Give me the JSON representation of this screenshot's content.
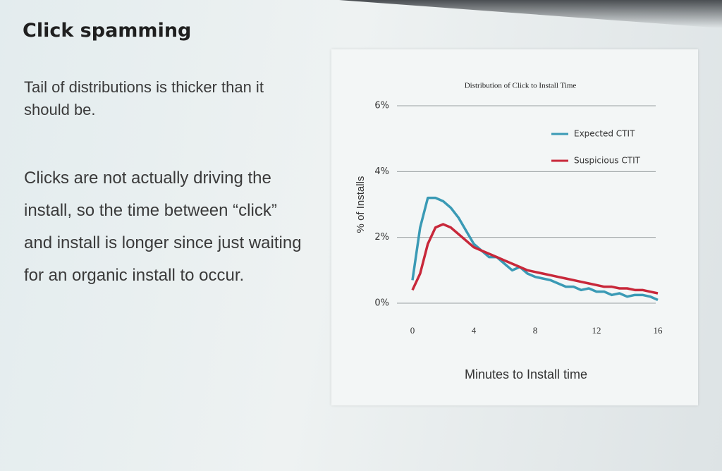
{
  "slide": {
    "title": "Click spamming",
    "paragraphs": [
      "Tail of distributions is thicker than it should be.",
      "Clicks are not actually driving the install, so the time between “click” and install is longer since just waiting for an organic install to occur."
    ]
  },
  "chart_data": {
    "type": "line",
    "title": "Distribution of Click to Install Time",
    "x_label": "Minutes to Install time",
    "y_label": "% of Installs",
    "x": [
      0,
      0.5,
      1,
      1.5,
      2,
      2.5,
      3,
      3.5,
      4,
      4.5,
      5,
      5.5,
      6,
      6.5,
      7,
      7.5,
      8,
      8.5,
      9,
      9.5,
      10,
      10.5,
      11,
      11.5,
      12,
      12.5,
      13,
      13.5,
      14,
      14.5,
      15,
      15.5,
      16
    ],
    "series": [
      {
        "name": "Expected CTIT",
        "color": "#3a9ab5",
        "values": [
          0.7,
          2.3,
          3.2,
          3.2,
          3.1,
          2.9,
          2.6,
          2.2,
          1.8,
          1.6,
          1.4,
          1.4,
          1.2,
          1.0,
          1.1,
          0.9,
          0.8,
          0.75,
          0.7,
          0.6,
          0.5,
          0.5,
          0.4,
          0.45,
          0.35,
          0.35,
          0.25,
          0.3,
          0.2,
          0.25,
          0.25,
          0.2,
          0.1
        ]
      },
      {
        "name": "Suspicious CTIT",
        "color": "#c8283a",
        "values": [
          0.4,
          0.9,
          1.8,
          2.3,
          2.4,
          2.3,
          2.1,
          1.9,
          1.7,
          1.6,
          1.5,
          1.4,
          1.3,
          1.2,
          1.1,
          1.0,
          0.95,
          0.9,
          0.85,
          0.8,
          0.75,
          0.7,
          0.65,
          0.6,
          0.55,
          0.5,
          0.5,
          0.45,
          0.45,
          0.4,
          0.4,
          0.35,
          0.3
        ]
      }
    ],
    "xlim": [
      0,
      16
    ],
    "xticks": [
      0,
      4,
      8,
      12,
      16
    ],
    "ylim": [
      0,
      6
    ],
    "yticks": [
      {
        "value": 0,
        "label": "0%"
      },
      {
        "value": 2,
        "label": "2%"
      },
      {
        "value": 4,
        "label": "4%"
      },
      {
        "value": 6,
        "label": "6%"
      }
    ],
    "grid": true,
    "legend": "upper right"
  }
}
